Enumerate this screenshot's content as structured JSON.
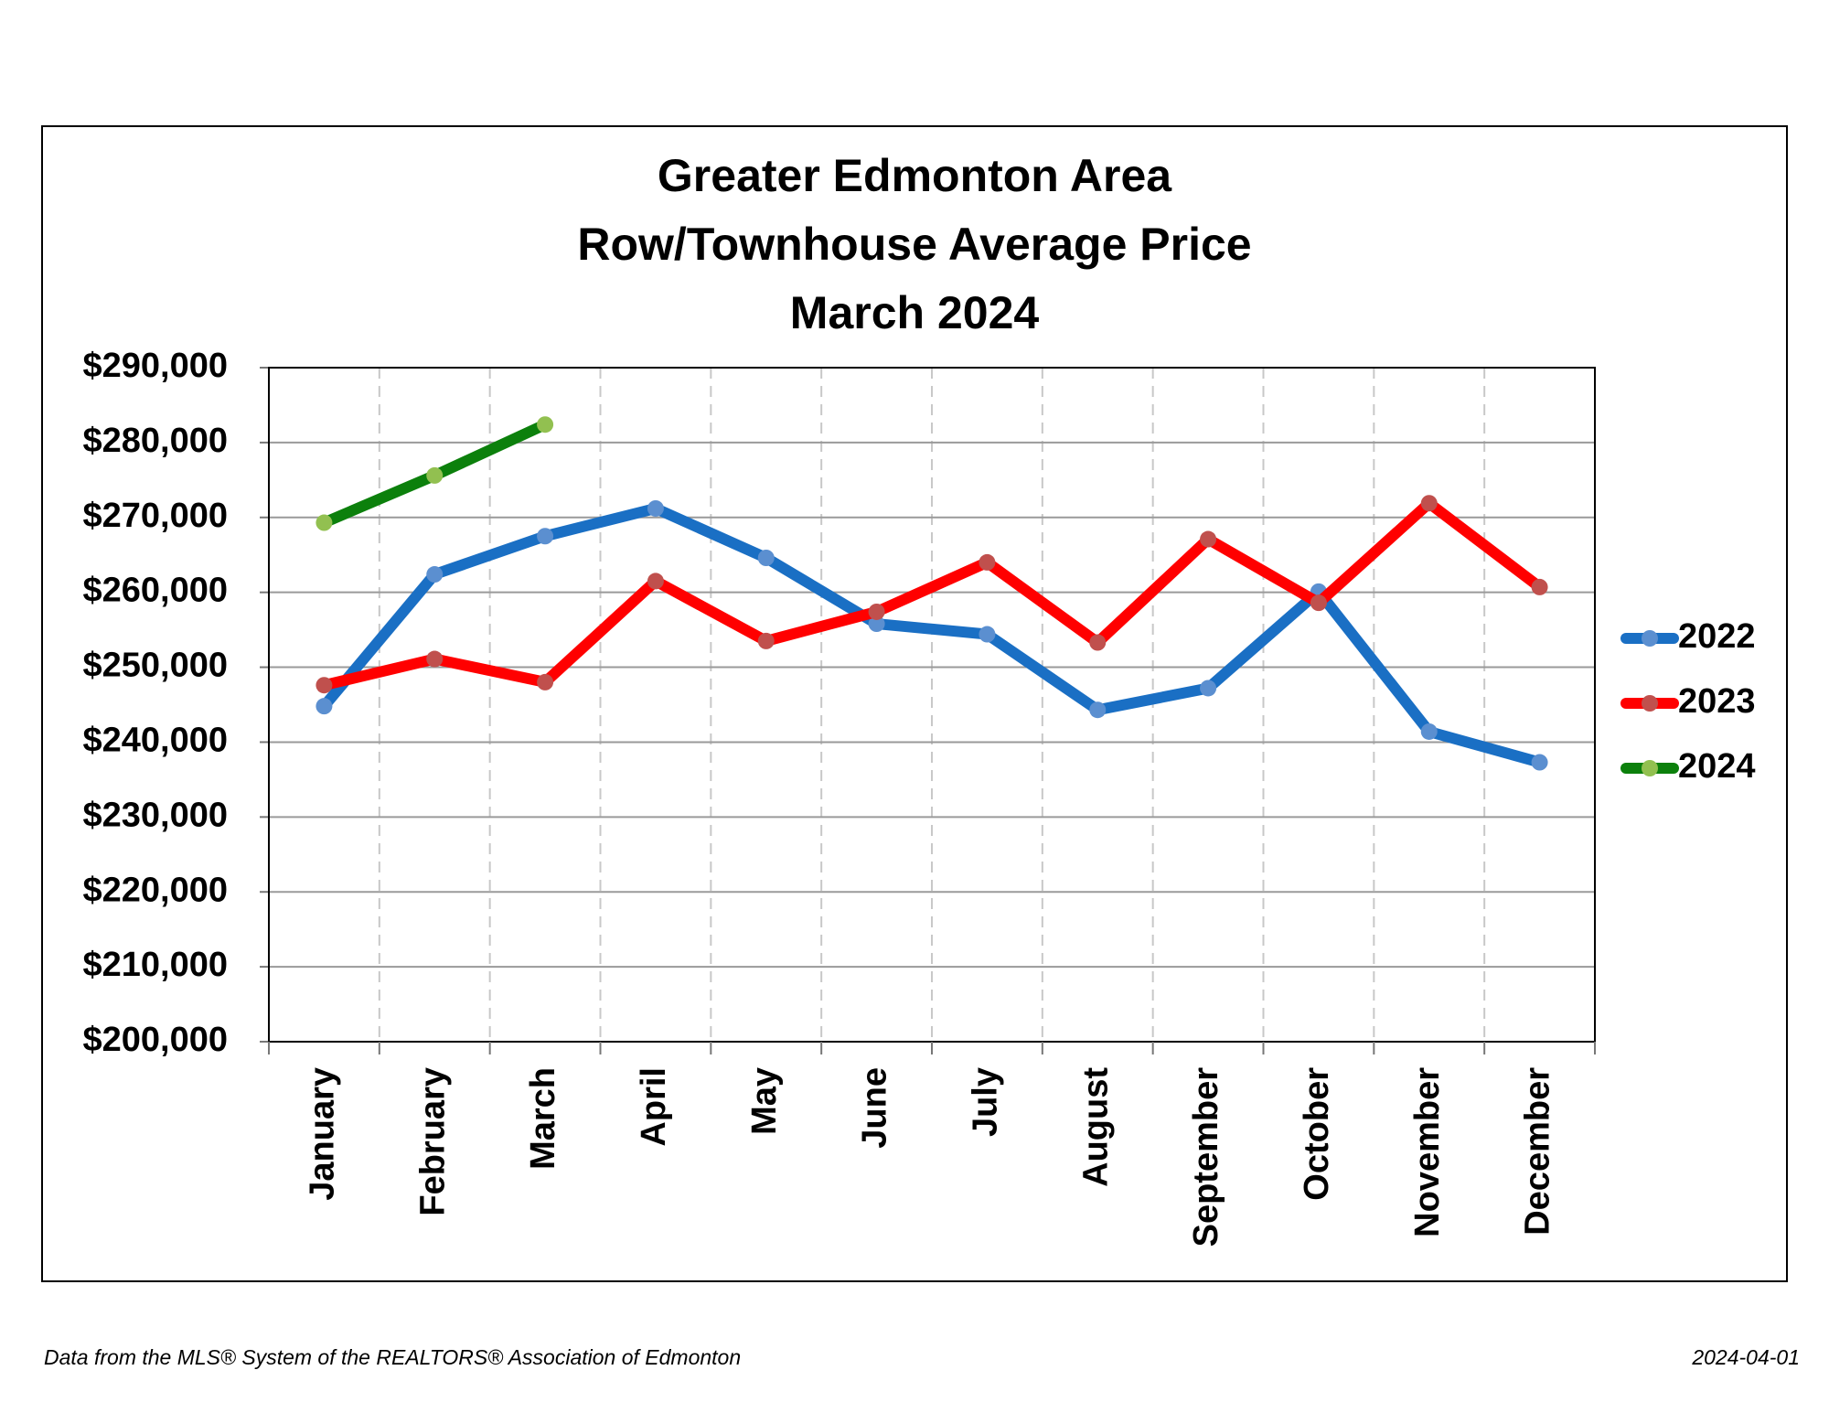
{
  "chart_data": {
    "type": "line",
    "title": [
      "Greater Edmonton Area",
      "Row/Townhouse Average Price",
      "March 2024"
    ],
    "categories": [
      "January",
      "February",
      "March",
      "April",
      "May",
      "June",
      "July",
      "August",
      "September",
      "October",
      "November",
      "December"
    ],
    "series": [
      {
        "name": "2022",
        "color": "#1a6fc4",
        "marker_color": "#5b8fd0",
        "values": [
          244800,
          262400,
          267500,
          271200,
          264600,
          255800,
          254400,
          244300,
          247200,
          260100,
          241400,
          237300
        ]
      },
      {
        "name": "2023",
        "color": "#ff0000",
        "marker_color": "#c0504d",
        "values": [
          247600,
          251100,
          248000,
          261500,
          253500,
          257400,
          264000,
          253300,
          267100,
          258600,
          271900,
          260700
        ]
      },
      {
        "name": "2024",
        "color": "#0c800c",
        "marker_color": "#92c050",
        "values": [
          269300,
          275600,
          282400,
          null,
          null,
          null,
          null,
          null,
          null,
          null,
          null,
          null
        ]
      }
    ],
    "ylim": [
      200000,
      290000
    ],
    "yticks": [
      {
        "value": 200000,
        "label": "$200,000"
      },
      {
        "value": 210000,
        "label": "$210,000"
      },
      {
        "value": 220000,
        "label": "$220,000"
      },
      {
        "value": 230000,
        "label": "$230,000"
      },
      {
        "value": 240000,
        "label": "$240,000"
      },
      {
        "value": 250000,
        "label": "$250,000"
      },
      {
        "value": 260000,
        "label": "$260,000"
      },
      {
        "value": 270000,
        "label": "$270,000"
      },
      {
        "value": 280000,
        "label": "$280,000"
      },
      {
        "value": 290000,
        "label": "$290,000"
      }
    ],
    "grid": true,
    "legend": "right"
  },
  "footer": {
    "source": "Data from the MLS® System of the REALTORS® Association of Edmonton",
    "date": "2024-04-01"
  }
}
